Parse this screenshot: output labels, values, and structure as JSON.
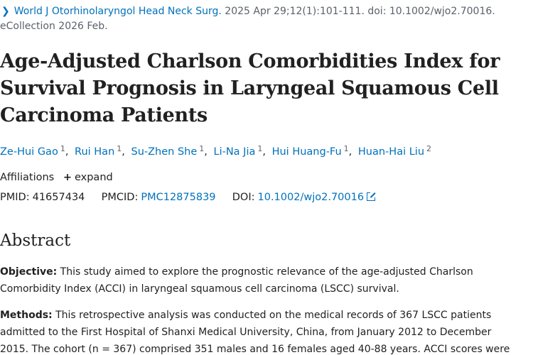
{
  "citation": {
    "journal": "World J Otorhinolaryngol Head Neck Surg.",
    "details": " 2025 Apr 29;12(1):101-111. doi: 10.1002/wjo2.70016.",
    "line2": "eCollection 2026 Feb."
  },
  "title_lines": [
    "Age-Adjusted Charlson Comorbidities Index for",
    "Survival Prognosis in Laryngeal Squamous Cell",
    "Carcinoma Patients"
  ],
  "authors": [
    {
      "name": "Ze-Hui Gao",
      "aff": "1"
    },
    {
      "name": "Rui Han",
      "aff": "1"
    },
    {
      "name": "Su-Zhen She",
      "aff": "1"
    },
    {
      "name": "Li-Na Jia",
      "aff": "1"
    },
    {
      "name": "Hui Huang-Fu",
      "aff": "1"
    },
    {
      "name": "Huan-Hai Liu",
      "aff": "2"
    }
  ],
  "affiliations": {
    "label": "Affiliations",
    "expand": "expand"
  },
  "identifiers": {
    "pmid_label": "PMID:",
    "pmid": "41657434",
    "pmcid_label": "PMCID:",
    "pmcid": "PMC12875839",
    "doi_label": "DOI:",
    "doi": "10.1002/wjo2.70016"
  },
  "abstract": {
    "heading": "Abstract",
    "objective_label": "Objective:",
    "objective_lines": [
      " This study aimed to explore the prognostic relevance of the age-adjusted Charlson",
      "Comorbidity Index (ACCI) in laryngeal squamous cell carcinoma (LSCC) survival."
    ],
    "methods_label": "Methods:",
    "methods_lines": [
      " This retrospective analysis was conducted on the medical records of 367 LSCC patients",
      "admitted to the First Hospital of Shanxi Medical University, China, from January 2012 to December",
      "2015. The cohort (n = 367) comprised 351 males and 16 females aged 40-88 years. ACCI scores were"
    ]
  },
  "colors": {
    "link": "#0071bc",
    "text": "#212121",
    "muted": "#5b616b"
  }
}
